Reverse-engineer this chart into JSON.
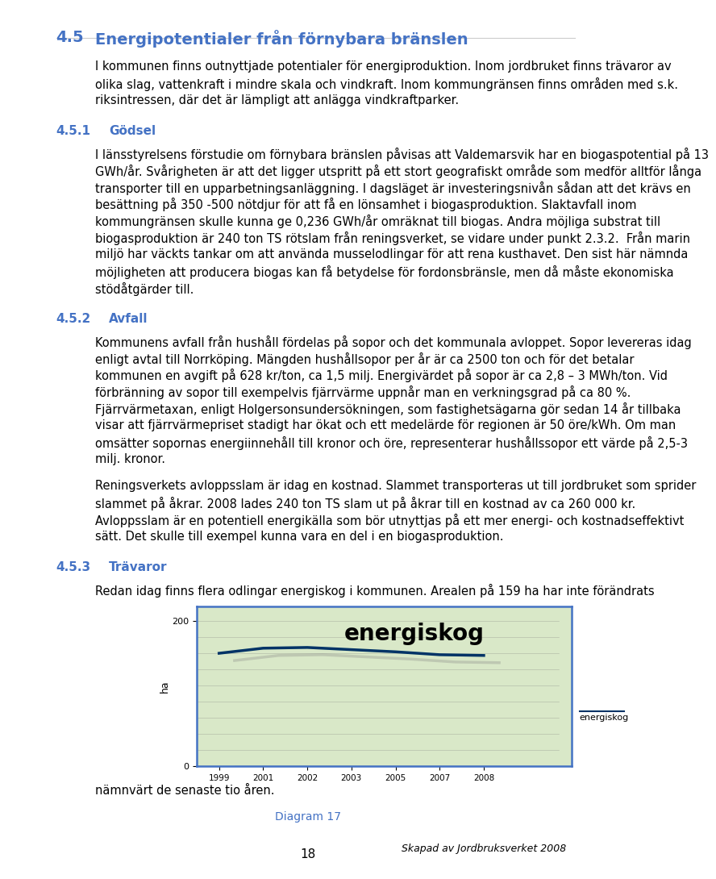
{
  "page_bg": "#ffffff",
  "heading_color": "#4472C4",
  "text_color": "#000000",
  "section_45": {
    "number": "4.5",
    "title": "Energipotentialer från förnybara bränslen",
    "body": [
      "I kommunen finns outnyttjade potentialer för energiproduktion. Inom jordbruket finns trävaror av",
      "olika slag, vattenkraft i mindre skala och vindkraft. Inom kommungränsen finns områden med s.k.",
      "riksintressen, där det är lämpligt att anlägga vindkraftparker."
    ]
  },
  "section_451": {
    "number": "4.5.1",
    "title": "Gödsel",
    "body": [
      "I länsstyrelsens förstudie om förnybara bränslen påvisas att Valdemarsvik har en biogaspotential på 13",
      "GWh/år. Svårigheten är att det ligger utspritt på ett stort geografiskt område som medför alltför långa",
      "transporter till en upparbetningsanläggning. I dagsläget är investeringsnivån sådan att det krävs en",
      "besättning på 350 -500 nötdjur för att få en lönsamhet i biogasproduktion. Slaktavfall inom",
      "kommungränsen skulle kunna ge 0,236 GWh/år omräknat till biogas. Andra möjliga substrat till",
      "biogasproduktion är 240 ton TS rötslam från reningsverket, se vidare under punkt 2.3.2.  Från marin",
      "miljö har väckts tankar om att använda musselodlingar för att rena kusthavet. Den sist här nämnda",
      "möjligheten att producera biogas kan få betydelse för fordonsbränsle, men då måste ekonomiska",
      "stödåtgärder till."
    ]
  },
  "section_452": {
    "number": "4.5.2",
    "title": "Avfall",
    "body": [
      "Kommunens avfall från hushåll fördelas på sopor och det kommunala avloppet. Sopor levereras idag",
      "enligt avtal till Norrköping. Mängden hushållsopor per år är ca 2500 ton och för det betalar",
      "kommunen en avgift på 628 kr/ton, ca 1,5 milj. Energivärdet på sopor är ca 2,8 – 3 MWh/ton. Vid",
      "förbränning av sopor till exempelvis fjärrvärme uppnår man en verkningsgrad på ca 80 %.",
      "Fjärrvärmetaxan, enligt Holgersonsundersökningen, som fastighetsägarna gör sedan 14 år tillbaka",
      "visar att fjärrvärmepriset stadigt har ökat och ett medelärde för regionen är 50 öre/kWh. Om man",
      "omsätter sopornas energiinnehåll till kronor och öre, representerar hushållssopor ett värde på 2,5-3",
      "milj. kronor.",
      "",
      "Reningsverkets avloppsslam är idag en kostnad. Slammet transporteras ut till jordbruket som sprider",
      "slammet på åkrar. 2008 lades 240 ton TS slam ut på åkrar till en kostnad av ca 260 000 kr.",
      "Avloppsslam är en potentiell energikälla som bör utnyttjas på ett mer energi- och kostnadseffektivt",
      "sätt. Det skulle till exempel kunna vara en del i en biogasproduktion."
    ]
  },
  "section_453": {
    "number": "4.5.3",
    "title": "Trävaror",
    "intro": "Redan idag finns flera odlingar energiskog i kommunen. Arealen på 159 ha har inte förändrats",
    "outro": "nämnvärt de senaste tio åren.",
    "diagram_label": "Diagram 17",
    "credit": "Skapad av Jordbruksverket 2008"
  },
  "chart": {
    "years": [
      1999,
      2001,
      2002,
      2003,
      2005,
      2007,
      2008
    ],
    "values": [
      155,
      162,
      163,
      160,
      157,
      153,
      152
    ],
    "ylim": [
      0,
      200
    ],
    "ylabel": "ha",
    "yticks": [
      0,
      200
    ],
    "title": "energiskog",
    "legend_label": "energiskog",
    "bg_color": "#d9e8c8",
    "line_color": "#003366",
    "border_color": "#4472C4"
  },
  "page_number": "18",
  "body_fontsize": 10.5,
  "heading1_fontsize": 14,
  "heading2_fontsize": 11
}
